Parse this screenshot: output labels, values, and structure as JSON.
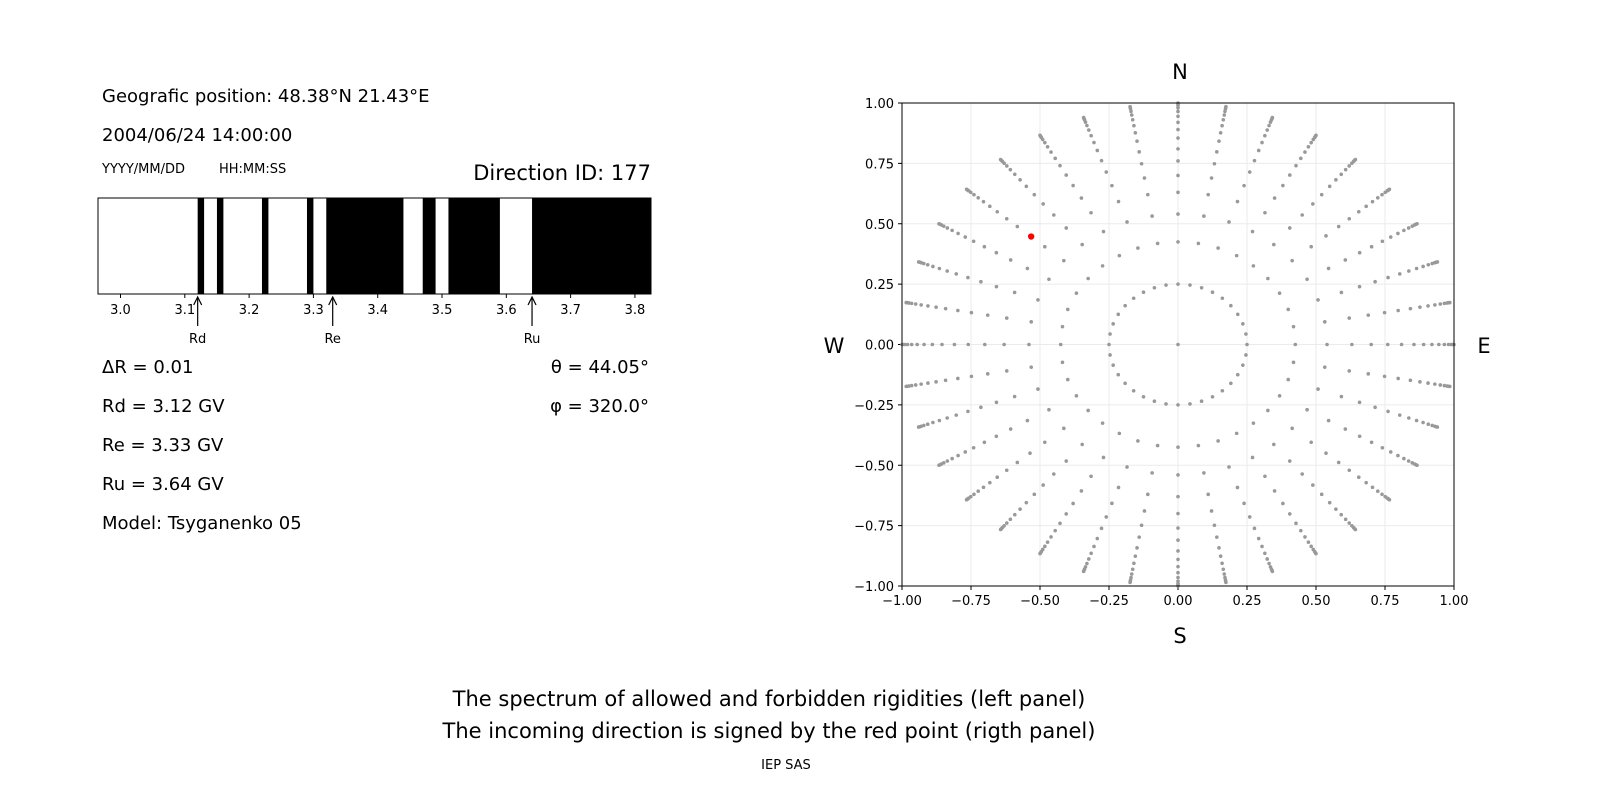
{
  "left_panel": {
    "position": "Geografic position: 48.38°N 21.43°E",
    "datetime": "2004/06/24 14:00:00",
    "date_format": "YYYY/MM/DD",
    "time_format": "HH:MM:SS",
    "direction_id": "Direction ID: 177",
    "delta_r": "ΔR = 0.01",
    "rd": "Rd = 3.12 GV",
    "re": "Re = 3.33 GV",
    "ru": "Ru = 3.64 GV",
    "model": "Model: Tsyganenko 05",
    "theta": "θ = 44.05°",
    "phi": "φ = 320.0°"
  },
  "chart_data": [
    {
      "type": "bar",
      "description_type": "rigidity spectrum (black = forbidden, white = allowed)",
      "xlim": [
        2.965,
        3.825
      ],
      "xticks": [
        "3.0",
        "3.1",
        "3.2",
        "3.3",
        "3.4",
        "3.5",
        "3.6",
        "3.7",
        "3.8"
      ],
      "forbidden_bands": [
        [
          3.12,
          3.13
        ],
        [
          3.15,
          3.16
        ],
        [
          3.22,
          3.23
        ],
        [
          3.29,
          3.3
        ],
        [
          3.32,
          3.44
        ],
        [
          3.47,
          3.49
        ],
        [
          3.51,
          3.59
        ],
        [
          3.64,
          3.825
        ]
      ],
      "markers": [
        {
          "label": "Rd",
          "value": 3.12
        },
        {
          "label": "Re",
          "value": 3.33
        },
        {
          "label": "Ru",
          "value": 3.64
        }
      ]
    },
    {
      "type": "scatter",
      "xlim": [
        -1,
        1
      ],
      "ylim": [
        -1,
        1
      ],
      "xticks": [
        "−1.00",
        "−0.75",
        "−0.50",
        "−0.25",
        "0.00",
        "0.25",
        "0.50",
        "0.75",
        "1.00"
      ],
      "yticks": [
        "−1.00",
        "−0.75",
        "−0.50",
        "−0.25",
        "0.00",
        "0.25",
        "0.50",
        "0.75",
        "1.00"
      ],
      "grid": true,
      "compass": {
        "n": "N",
        "s": "S",
        "w": "W",
        "e": "E"
      },
      "grid_points": {
        "color": "#999999",
        "azimuth_step_deg": 10,
        "center": [
          0,
          0
        ],
        "ring_radius": 0.25,
        "ring_count": 36,
        "ray_radii": [
          0.425,
          0.54,
          0.63,
          0.7,
          0.76,
          0.81,
          0.855,
          0.89,
          0.92,
          0.945,
          0.965,
          0.98,
          0.99,
          0.996,
          1.0
        ]
      },
      "direction_point": {
        "x": -0.532,
        "y": 0.447,
        "color": "#ff0000"
      }
    }
  ],
  "footer": {
    "line1": "The spectrum of allowed and forbidden rigidities (left panel)",
    "line2": "The incoming direction is signed by the red point (rigth panel)",
    "credit": "IEP SAS"
  }
}
